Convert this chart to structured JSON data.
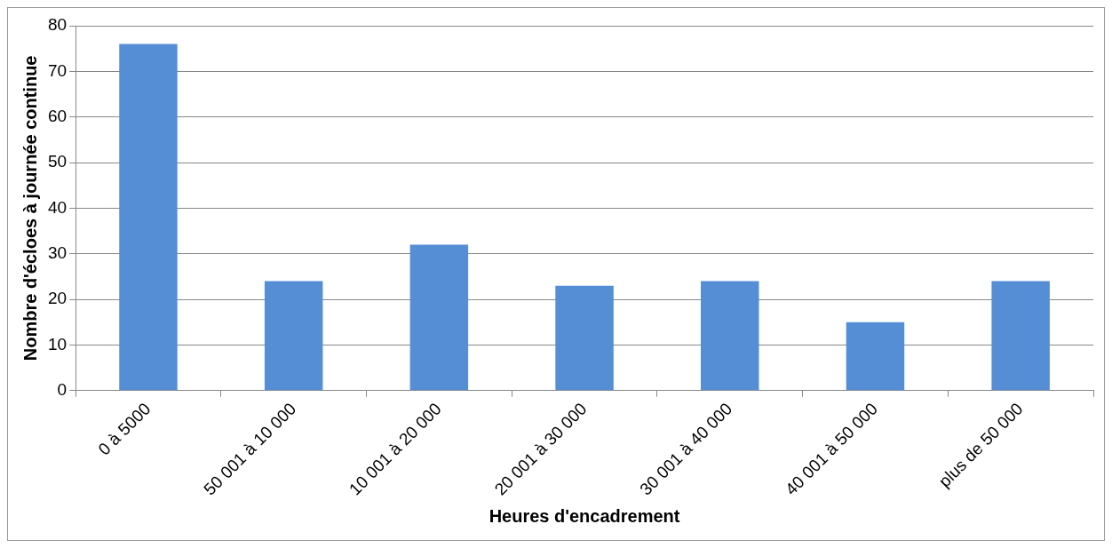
{
  "chart_data": {
    "type": "bar",
    "xlabel": "Heures d'encadrement",
    "ylabel": "Nombre d'écloes à journée continue",
    "categories": [
      "0 à 5000",
      "50 001 à 10 000",
      "10 001 à 20 000",
      "20 001 à 30 000",
      "30 001 à 40 000",
      "40 001 à 50 000",
      "plus de 50 000"
    ],
    "values": [
      76,
      24,
      32,
      23,
      24,
      15,
      24
    ],
    "color": "#558ed5",
    "ylim": [
      0,
      80
    ],
    "yticks": [
      0,
      10,
      20,
      30,
      40,
      50,
      60,
      70,
      80
    ],
    "grid": "y",
    "legend": false
  }
}
